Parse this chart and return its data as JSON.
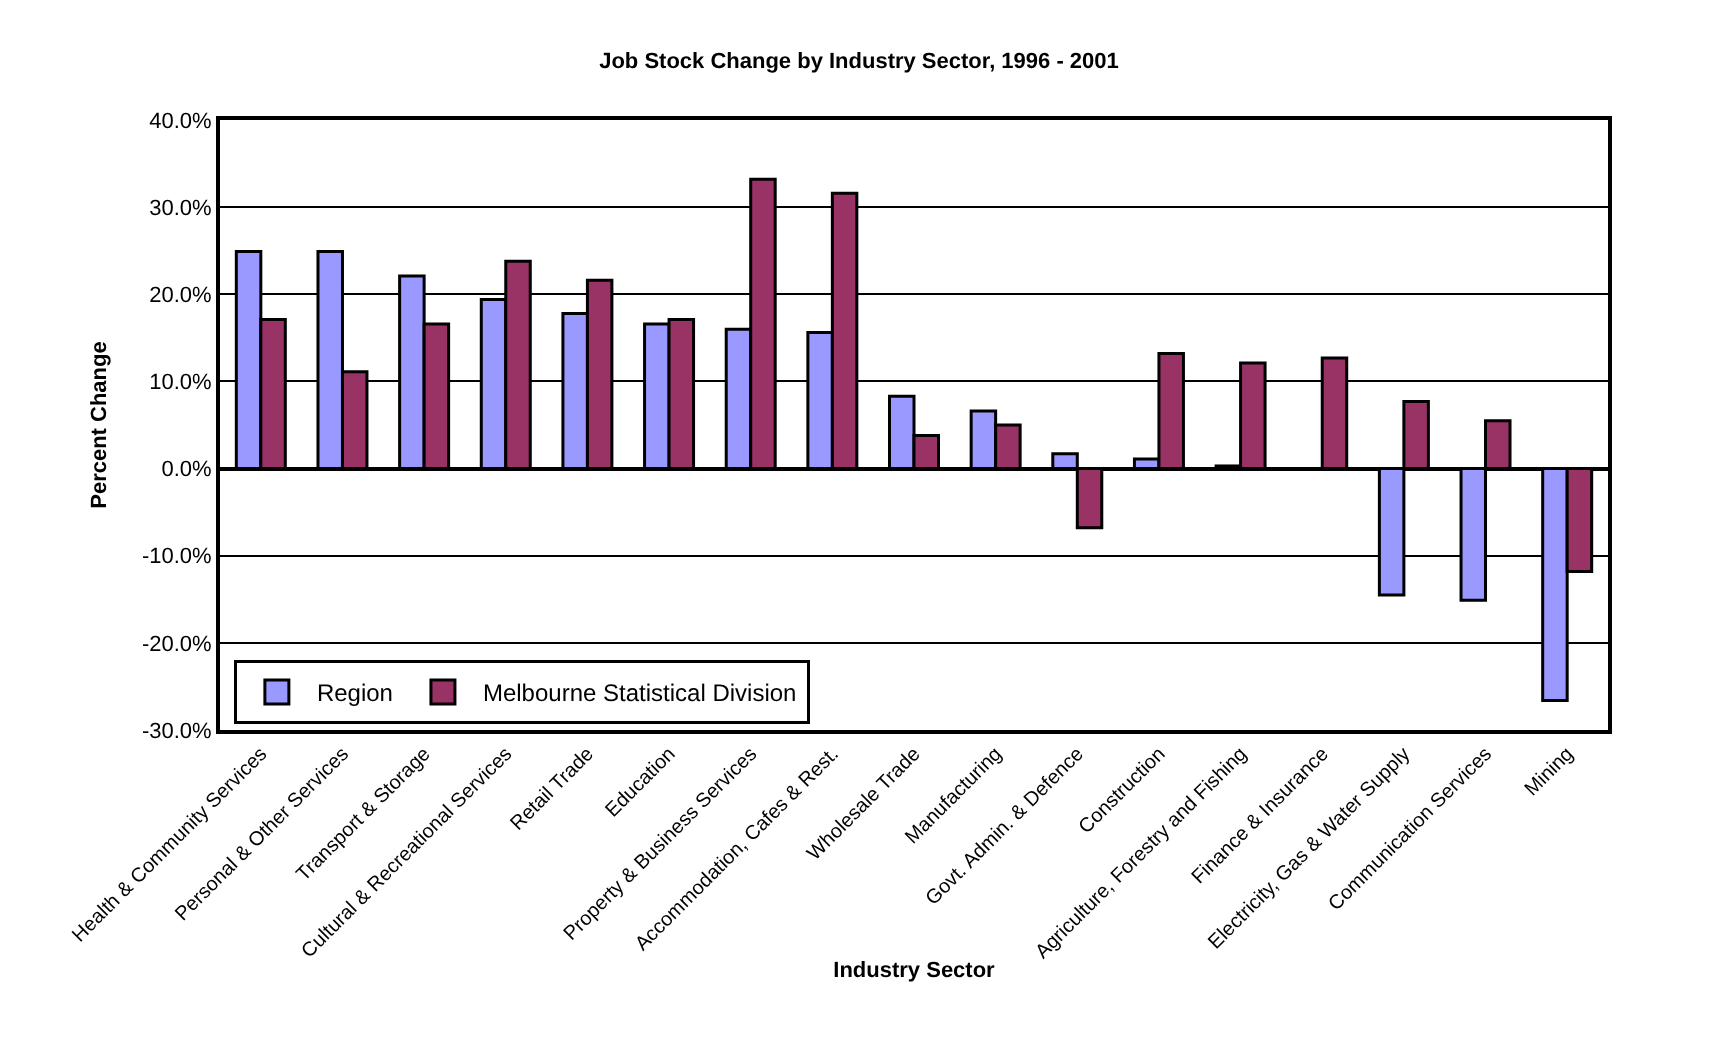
{
  "chart_data": {
    "type": "bar",
    "title": "Job Stock Change by Industry Sector, 1996 - 2001",
    "xlabel": "Industry Sector",
    "ylabel": "Percent Change",
    "categories": [
      "Health & Community Services",
      "Personal & Other Services",
      "Transport & Storage",
      "Cultural & Recreational Services",
      "Retail Trade",
      "Education",
      "Property & Business Services",
      "Accommodation, Cafes & Rest.",
      "Wholesale Trade",
      "Manufacturing",
      "Govt. Admin. & Defence",
      "Construction",
      "Agriculture, Forestry and Fishing",
      "Finance & Insurance",
      "Electricity, Gas & Water Supply",
      "Communication Services",
      "Mining"
    ],
    "series": [
      {
        "name": "Region",
        "color": "#9999ff",
        "values": [
          24.9,
          24.9,
          22.1,
          19.4,
          17.8,
          16.6,
          16.0,
          15.6,
          8.3,
          6.6,
          1.7,
          1.1,
          0.3,
          null,
          -14.5,
          -15.1,
          -26.6
        ]
      },
      {
        "name": "Melbourne Statistical Division",
        "color": "#993366",
        "values": [
          17.1,
          11.1,
          16.6,
          23.8,
          21.6,
          17.1,
          33.2,
          31.6,
          3.8,
          5.0,
          -6.8,
          13.2,
          12.1,
          12.7,
          7.7,
          5.5,
          -11.8
        ]
      }
    ],
    "ylim": [
      -30,
      40
    ],
    "yticks": [
      {
        "value": -30,
        "label": "-30.0%"
      },
      {
        "value": -20,
        "label": "-20.0%"
      },
      {
        "value": -10,
        "label": "-10.0%"
      },
      {
        "value": 0,
        "label": "0.0%"
      },
      {
        "value": 10,
        "label": "10.0%"
      },
      {
        "value": 20,
        "label": "20.0%"
      },
      {
        "value": 30,
        "label": "30.0%"
      },
      {
        "value": 40,
        "label": "40.0%"
      }
    ],
    "grid": "y",
    "legend": "bottom left"
  }
}
